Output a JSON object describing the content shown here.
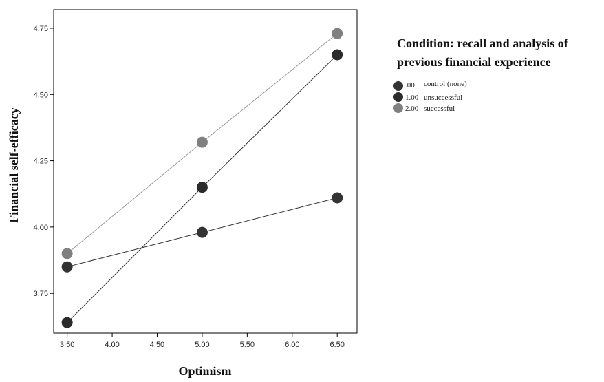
{
  "chart_data": {
    "type": "line",
    "xlabel": "Optimism",
    "ylabel": "Financial self-efficacy",
    "xlim": [
      3.35,
      6.72
    ],
    "ylim": [
      3.6,
      4.82
    ],
    "xticks": [
      3.5,
      4.0,
      4.5,
      5.0,
      5.5,
      6.0,
      6.5
    ],
    "xtick_labels": [
      "3.50",
      "4.00",
      "4.50",
      "5.00",
      "5.50",
      "6.00",
      "6.50"
    ],
    "yticks": [
      3.75,
      4.0,
      4.25,
      4.5,
      4.75
    ],
    "ytick_labels": [
      "3.75",
      "4.00",
      "4.25",
      "4.50",
      "4.75"
    ],
    "grid": false,
    "legend_position": "right",
    "legend_title_lines": [
      "Condition: recall and analysis of",
      "previous financial experience"
    ],
    "series": [
      {
        "name": ".00 control (none)",
        "legend_code": ".00",
        "legend_desc": "control (none)",
        "color": "#333333",
        "x": [
          3.5,
          5.0,
          6.5
        ],
        "values": [
          3.85,
          3.98,
          4.11
        ]
      },
      {
        "name": "1.00 unsuccessful",
        "legend_code": "1.00",
        "legend_desc": "unsuccessful",
        "color": "#2b2b2b",
        "x": [
          3.5,
          5.0,
          6.5
        ],
        "values": [
          3.64,
          4.15,
          4.65
        ]
      },
      {
        "name": "2.00 successful",
        "legend_code": "2.00",
        "legend_desc": "successful",
        "color": "#808080",
        "x": [
          3.5,
          5.0,
          6.5
        ],
        "values": [
          3.9,
          4.32,
          4.73
        ]
      }
    ]
  }
}
